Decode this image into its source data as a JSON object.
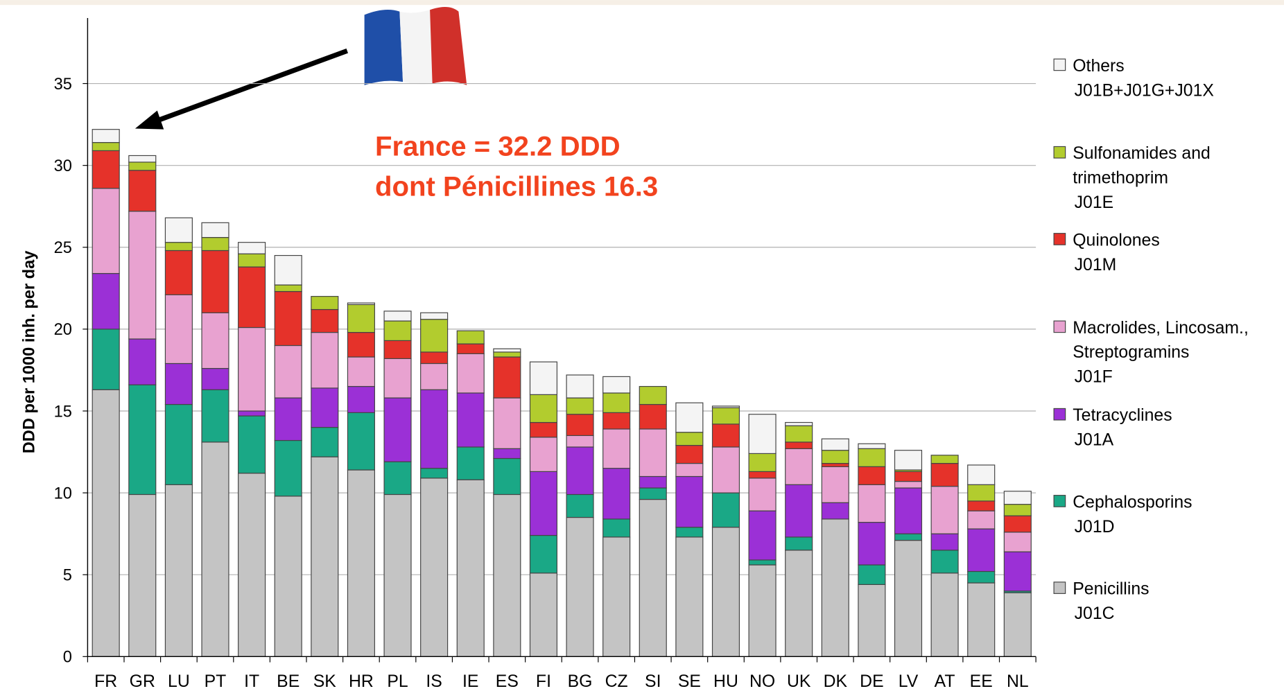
{
  "chart_data": {
    "type": "stacked_bar",
    "y_label": "DDD per 1000 inh. per day",
    "annotations": [
      "France = 32.2 DDD",
      "dont Pénicillines  16.3"
    ],
    "categories": [
      "FR",
      "GR",
      "LU",
      "PT",
      "IT",
      "BE",
      "SK",
      "HR",
      "PL",
      "IS",
      "IE",
      "ES",
      "FI",
      "BG",
      "CZ",
      "SI",
      "SE",
      "HU",
      "NO",
      "UK",
      "DK",
      "DE",
      "LV",
      "AT",
      "EE",
      "NL"
    ],
    "ylim": [
      0,
      39
    ],
    "yticks": [
      0,
      5,
      10,
      15,
      20,
      25,
      30,
      35
    ],
    "grid": true,
    "legend": "right",
    "series": [
      {
        "name": [
          "Penicillins"
        ],
        "code": "J01C",
        "color": "#c4c4c4",
        "values": [
          16.3,
          9.9,
          10.5,
          13.1,
          11.2,
          9.8,
          12.2,
          11.4,
          9.9,
          10.9,
          10.8,
          9.9,
          5.1,
          8.5,
          7.3,
          9.6,
          7.3,
          7.9,
          5.6,
          6.5,
          8.4,
          4.4,
          7.1,
          5.1,
          4.5,
          3.9
        ]
      },
      {
        "name": [
          "Cephalosporins"
        ],
        "code": "J01D",
        "color": "#1aa886",
        "values": [
          3.7,
          6.7,
          4.9,
          3.2,
          3.5,
          3.4,
          1.8,
          3.5,
          2.0,
          0.6,
          2.0,
          2.2,
          2.3,
          1.4,
          1.1,
          0.7,
          0.6,
          2.1,
          0.3,
          0.8,
          0,
          1.2,
          0.4,
          1.4,
          0.7,
          0.1
        ]
      },
      {
        "name": [
          "Tetracyclines"
        ],
        "code": "J01A",
        "color": "#9b30d6",
        "values": [
          3.4,
          2.8,
          2.5,
          1.3,
          0.3,
          2.6,
          2.4,
          1.6,
          3.9,
          4.8,
          3.3,
          0.6,
          3.9,
          2.9,
          3.1,
          0.7,
          3.1,
          0,
          3.0,
          3.2,
          1.0,
          2.6,
          2.8,
          1.0,
          2.6,
          2.4
        ]
      },
      {
        "name": [
          "Macrolides, Lincosam.,",
          "Streptogramins"
        ],
        "code": "J01F",
        "color": "#e8a2d0",
        "values": [
          5.2,
          7.8,
          4.2,
          3.4,
          5.1,
          3.2,
          3.4,
          1.8,
          2.4,
          1.6,
          2.4,
          3.1,
          2.1,
          0.7,
          2.4,
          2.9,
          0.8,
          2.8,
          2.0,
          2.2,
          2.2,
          2.3,
          0.4,
          2.9,
          1.1,
          1.2
        ]
      },
      {
        "name": [
          "Quinolones"
        ],
        "code": "J01M",
        "color": "#e5322a",
        "values": [
          2.3,
          2.5,
          2.7,
          3.8,
          3.7,
          3.3,
          1.4,
          1.5,
          1.1,
          0.7,
          0.6,
          2.5,
          0.9,
          1.3,
          1.0,
          1.5,
          1.1,
          1.4,
          0.4,
          0.4,
          0.2,
          1.1,
          0.6,
          1.4,
          0.6,
          1.0
        ]
      },
      {
        "name": [
          "Sulfonamides and",
          "trimethoprim"
        ],
        "code": "J01E",
        "color": "#b2cc2e",
        "values": [
          0.5,
          0.5,
          0.5,
          0.8,
          0.8,
          0.4,
          0.8,
          1.7,
          1.2,
          2.0,
          0.8,
          0.3,
          1.7,
          1.0,
          1.2,
          1.1,
          0.8,
          1.0,
          1.1,
          1.0,
          0.8,
          1.1,
          0.1,
          0.5,
          1.0,
          0.7
        ]
      },
      {
        "name": [
          "Others"
        ],
        "code": "J01B+J01G+J01X",
        "color": "#f4f4f4",
        "values": [
          0.8,
          0.4,
          1.5,
          0.9,
          0.7,
          1.8,
          0,
          0.1,
          0.6,
          0.4,
          0,
          0.2,
          2.0,
          1.4,
          1.0,
          0,
          1.8,
          0.1,
          2.4,
          0.2,
          0.7,
          0.3,
          1.2,
          0,
          1.2,
          0.8
        ]
      }
    ]
  }
}
